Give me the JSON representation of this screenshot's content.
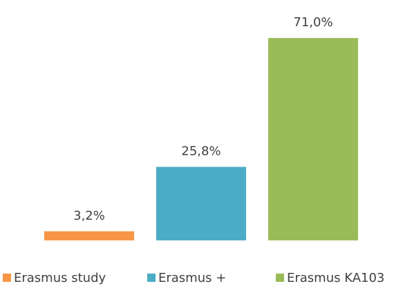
{
  "chart_data": {
    "type": "bar",
    "series": [
      {
        "name": "Erasmus study",
        "color": "#f79646",
        "values": [
          3.2
        ],
        "value_labels": [
          "3,2%"
        ]
      },
      {
        "name": "Erasmus +",
        "color": "#4bacc6",
        "values": [
          25.8
        ],
        "value_labels": [
          "25,8%"
        ]
      },
      {
        "name": "Erasmus KA103",
        "color": "#9bbb59",
        "values": [
          71.0
        ],
        "value_labels": [
          "71,0%"
        ]
      }
    ],
    "legend": "bottom"
  }
}
